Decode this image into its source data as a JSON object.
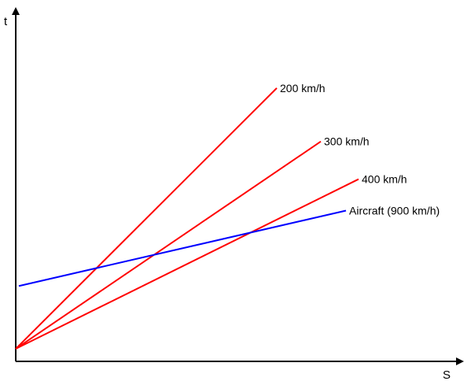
{
  "chart_data": {
    "type": "line",
    "xlabel": "S",
    "ylabel": "t",
    "xlim": [
      0,
      100
    ],
    "ylim": [
      0,
      100
    ],
    "grid": false,
    "legend": "none",
    "series": [
      {
        "name": "200 km/h",
        "color": "#ff0000",
        "x": [
          0,
          83
        ],
        "y": [
          4,
          87
        ]
      },
      {
        "name": "300 km/h",
        "color": "#ff0000",
        "x": [
          0,
          97
        ],
        "y": [
          4,
          70
        ]
      },
      {
        "name": "400 km/h",
        "color": "#ff0000",
        "x": [
          0,
          109
        ],
        "y": [
          4,
          58
        ]
      },
      {
        "name": "Aircraft (900 km/h)",
        "color": "#0000ff",
        "x": [
          1,
          105
        ],
        "y": [
          24,
          48
        ]
      }
    ]
  }
}
